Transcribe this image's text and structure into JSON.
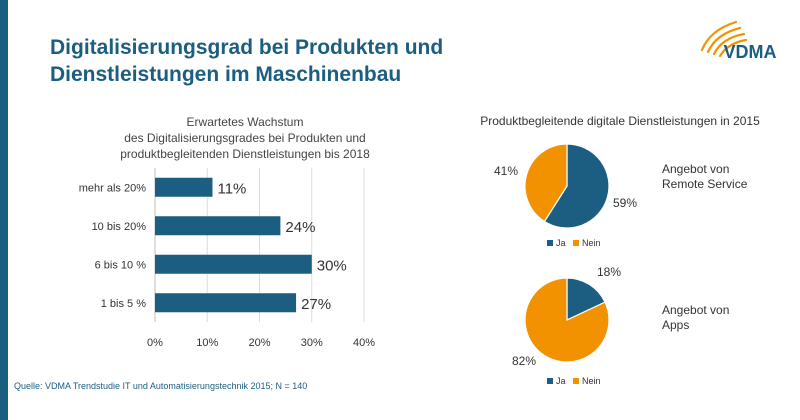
{
  "page": {
    "title_line1": "Digitalisierungsgrad bei Produkten und",
    "title_line2": "Dienstleistungen im Maschinenbau",
    "logo_text": "VDMA",
    "source": "Quelle: VDMA Trendstudie IT und Automatisierungstechnik 2015; N = 140",
    "colors": {
      "primary": "#1b5e82",
      "accent": "#f39200",
      "stripe": "#1b5e82"
    }
  },
  "chart_data": [
    {
      "type": "bar",
      "orientation": "horizontal",
      "title_lines": [
        "Erwartetes Wachstum",
        "des Digitalisierungsgrades bei Produkten und",
        "produktbegleitenden Dienstleistungen bis 2018"
      ],
      "categories": [
        "mehr als 20%",
        "10 bis 20%",
        "6 bis 10 %",
        "1 bis 5 %"
      ],
      "values": [
        11,
        24,
        30,
        27
      ],
      "data_labels": [
        "11%",
        "24%",
        "30%",
        "27%"
      ],
      "xlim": [
        0,
        40
      ],
      "xticks": [
        "0%",
        "10%",
        "20%",
        "30%",
        "40%"
      ],
      "grid": true,
      "color": "#1b5e82"
    },
    {
      "type": "pie",
      "title": "Produktbegleitende digitale Dienstleistungen in 2015",
      "label": "Angebot von Remote Service",
      "label_lines": [
        "Angebot von",
        "Remote Service"
      ],
      "categories": [
        "Ja",
        "Nein"
      ],
      "values": [
        59,
        41
      ],
      "data_labels": [
        "59%",
        "41%"
      ],
      "colors": [
        "#1b5e82",
        "#f39200"
      ],
      "legend_position": "bottom"
    },
    {
      "type": "pie",
      "label": "Angebot von Apps",
      "label_lines": [
        "Angebot von",
        "Apps"
      ],
      "categories": [
        "Ja",
        "Nein"
      ],
      "values": [
        18,
        82
      ],
      "data_labels": [
        "18%",
        "82%"
      ],
      "colors": [
        "#1b5e82",
        "#f39200"
      ],
      "legend_position": "bottom"
    }
  ]
}
